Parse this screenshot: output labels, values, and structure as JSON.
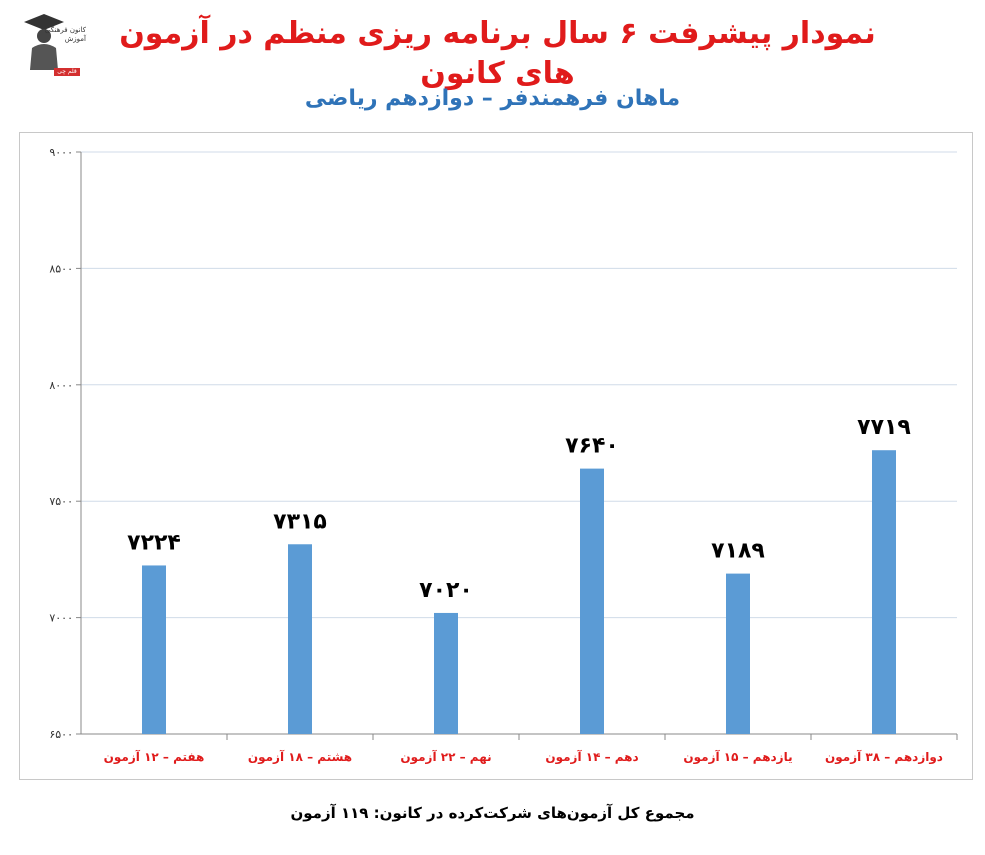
{
  "logo": {
    "text": "کانون فرهنگی آموزش",
    "badge": "قلم چی"
  },
  "header": {
    "title": "نمودار پیشرفت ۶ سال برنامه ریزی منظم در آزمون های کانون",
    "subtitle": "ماهان فرهمندفر – دوازدهم ریاضی"
  },
  "footer": {
    "text": "مجموع کل آزمون‌های شرکت‌کرده در کانون: ۱۱۹ آزمون"
  },
  "colors": {
    "bar": "#5b9bd5",
    "category_label": "#e01b1b",
    "title": "#e01b1b",
    "subtitle": "#2f73b8",
    "grid": "#d0dbe8"
  },
  "chart_data": {
    "type": "bar",
    "title": "",
    "xlabel": "",
    "ylabel": "",
    "ylim": [
      6500,
      9000
    ],
    "yticks": [
      6500,
      7000,
      7500,
      8000,
      8500,
      9000
    ],
    "ytick_labels": [
      "۶۵۰۰",
      "۷۰۰۰",
      "۷۵۰۰",
      "۸۰۰۰",
      "۸۵۰۰",
      "۹۰۰۰"
    ],
    "grid": true,
    "legend": "none",
    "categories": [
      "هفتم – ۱۲ آزمون",
      "هشتم – ۱۸ آزمون",
      "نهم – ۲۲ آزمون",
      "دهم – ۱۴ آزمون",
      "یازدهم – ۱۵ آزمون",
      "دوازدهم – ۳۸ آزمون"
    ],
    "values": [
      7224,
      7315,
      7020,
      7640,
      7189,
      7719
    ],
    "data_labels": [
      "۷۲۲۴",
      "۷۳۱۵",
      "۷۰۲۰",
      "۷۶۴۰",
      "۷۱۸۹",
      "۷۷۱۹"
    ]
  }
}
